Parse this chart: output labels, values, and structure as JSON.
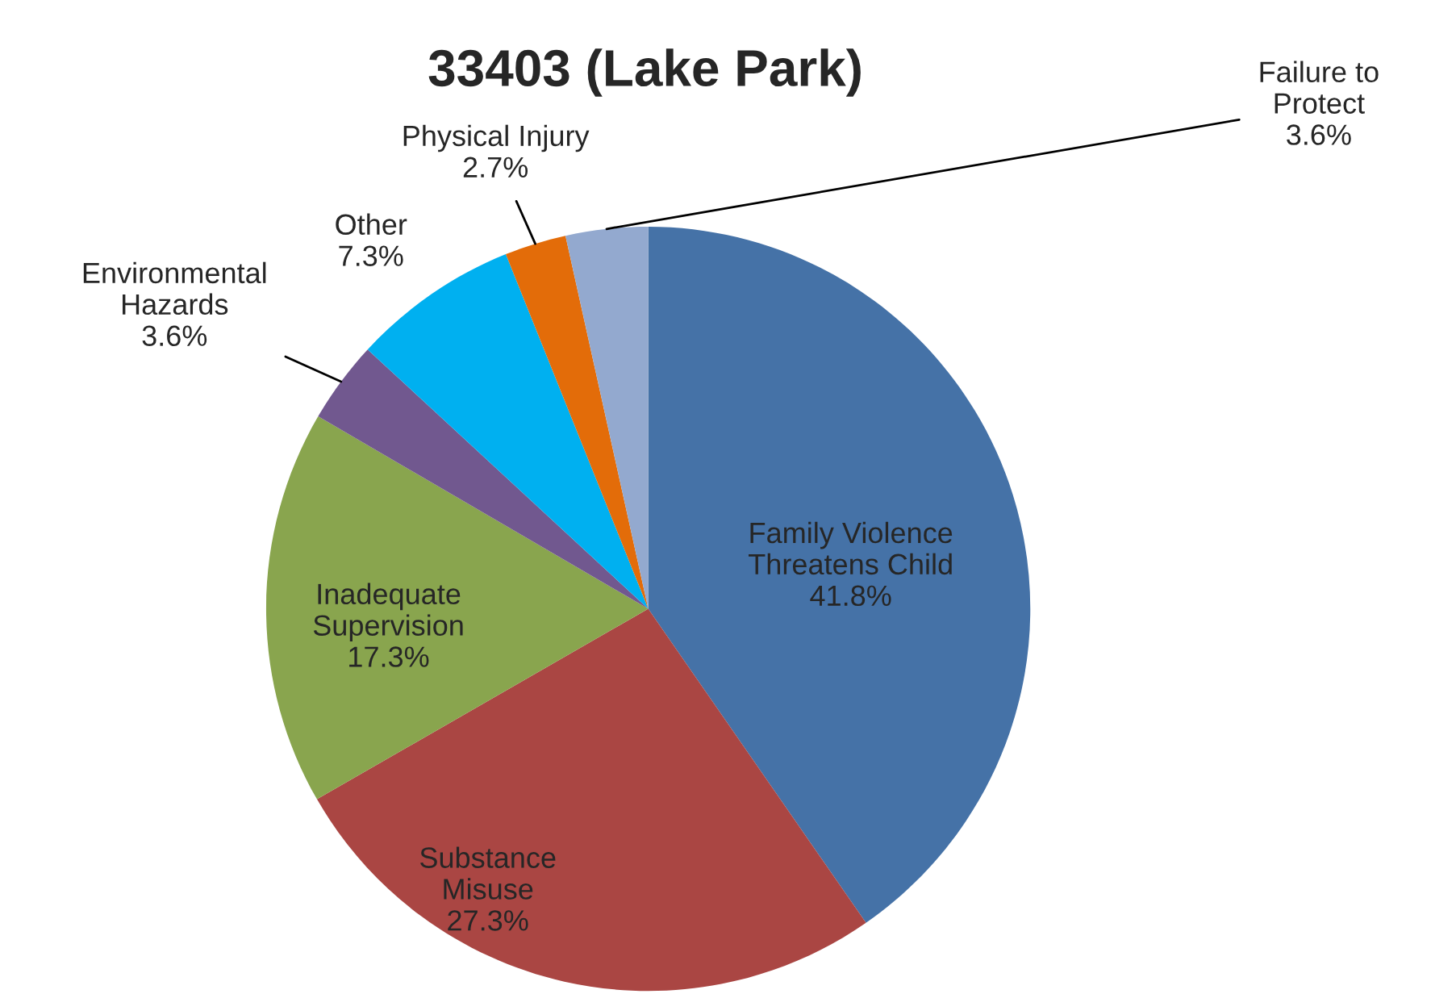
{
  "chart_data": {
    "type": "pie",
    "title": "33403 (Lake Park)",
    "categories": [
      "Family Violence\nThreatens Child",
      "Substance\nMisuse",
      "Inadequate\nSupervision",
      "Environmental\nHazards",
      "Other",
      "Physical Injury",
      "Failure to\nProtect"
    ],
    "values": [
      41.8,
      27.3,
      17.3,
      3.6,
      7.3,
      2.7,
      3.6
    ],
    "value_labels": [
      "41.8%",
      "27.3%",
      "17.3%",
      "3.6%",
      "7.3%",
      "2.7%",
      "3.6%"
    ],
    "colors": [
      "#4572a7",
      "#aa4643",
      "#89a54e",
      "#71588f",
      "#00b0f0",
      "#e36c09",
      "#93a9cf"
    ]
  }
}
